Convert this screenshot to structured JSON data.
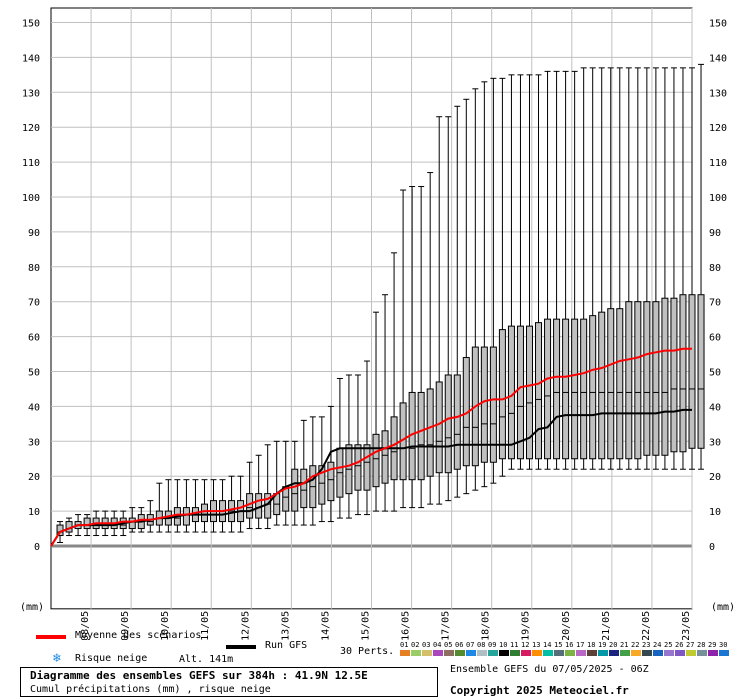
{
  "chart_data": {
    "type": "box",
    "title": "Diagramme des ensembles GEFS sur 384h : 41.9N 12.5E",
    "subtitle": "Cumul précipitations (mm) , risque neige",
    "ylabel": "(mm)",
    "ylim": [
      -18,
      152
    ],
    "yticks": [
      0,
      10,
      20,
      30,
      40,
      50,
      60,
      70,
      80,
      90,
      100,
      110,
      120,
      130,
      140,
      150
    ],
    "x_labels": [
      "08/05",
      "09/05",
      "10/05",
      "11/05",
      "12/05",
      "13/05",
      "14/05",
      "15/05",
      "16/05",
      "17/05",
      "18/05",
      "19/05",
      "20/05",
      "21/05",
      "22/05",
      "23/05"
    ],
    "boxes": [
      {
        "min": 1,
        "q1": 3,
        "med": 4,
        "q3": 6,
        "max": 7
      },
      {
        "min": 3,
        "q1": 4,
        "med": 5,
        "q3": 7,
        "max": 8
      },
      {
        "min": 3,
        "q1": 5,
        "med": 6,
        "q3": 7,
        "max": 9
      },
      {
        "min": 3,
        "q1": 5,
        "med": 6,
        "q3": 8,
        "max": 9
      },
      {
        "min": 3,
        "q1": 5,
        "med": 6,
        "q3": 8,
        "max": 10
      },
      {
        "min": 3,
        "q1": 5,
        "med": 6,
        "q3": 8,
        "max": 10
      },
      {
        "min": 3,
        "q1": 5,
        "med": 6,
        "q3": 8,
        "max": 10
      },
      {
        "min": 3,
        "q1": 5,
        "med": 6,
        "q3": 8,
        "max": 10
      },
      {
        "min": 4,
        "q1": 5,
        "med": 7,
        "q3": 8,
        "max": 11
      },
      {
        "min": 4,
        "q1": 5,
        "med": 7,
        "q3": 9,
        "max": 11
      },
      {
        "min": 4,
        "q1": 6,
        "med": 7,
        "q3": 9,
        "max": 13
      },
      {
        "min": 4,
        "q1": 6,
        "med": 8,
        "q3": 10,
        "max": 18
      },
      {
        "min": 4,
        "q1": 6,
        "med": 8,
        "q3": 10,
        "max": 19
      },
      {
        "min": 4,
        "q1": 6,
        "med": 8,
        "q3": 11,
        "max": 19
      },
      {
        "min": 4,
        "q1": 6,
        "med": 9,
        "q3": 11,
        "max": 19
      },
      {
        "min": 4,
        "q1": 7,
        "med": 9,
        "q3": 11,
        "max": 19
      },
      {
        "min": 4,
        "q1": 7,
        "med": 9,
        "q3": 12,
        "max": 19
      },
      {
        "min": 4,
        "q1": 7,
        "med": 10,
        "q3": 13,
        "max": 19
      },
      {
        "min": 4,
        "q1": 7,
        "med": 10,
        "q3": 13,
        "max": 19
      },
      {
        "min": 4,
        "q1": 7,
        "med": 10,
        "q3": 13,
        "max": 20
      },
      {
        "min": 4,
        "q1": 7,
        "med": 10,
        "q3": 13,
        "max": 20
      },
      {
        "min": 5,
        "q1": 8,
        "med": 11,
        "q3": 15,
        "max": 24
      },
      {
        "min": 5,
        "q1": 8,
        "med": 11,
        "q3": 15,
        "max": 26
      },
      {
        "min": 5,
        "q1": 8,
        "med": 12,
        "q3": 15,
        "max": 29
      },
      {
        "min": 6,
        "q1": 9,
        "med": 12,
        "q3": 15,
        "max": 30
      },
      {
        "min": 6,
        "q1": 10,
        "med": 14,
        "q3": 17,
        "max": 30
      },
      {
        "min": 6,
        "q1": 10,
        "med": 15,
        "q3": 22,
        "max": 30
      },
      {
        "min": 6,
        "q1": 11,
        "med": 16,
        "q3": 22,
        "max": 36
      },
      {
        "min": 6,
        "q1": 11,
        "med": 17,
        "q3": 23,
        "max": 37
      },
      {
        "min": 7,
        "q1": 12,
        "med": 18,
        "q3": 23,
        "max": 37
      },
      {
        "min": 7,
        "q1": 13,
        "med": 19,
        "q3": 24,
        "max": 40
      },
      {
        "min": 8,
        "q1": 14,
        "med": 21,
        "q3": 28,
        "max": 48
      },
      {
        "min": 8,
        "q1": 15,
        "med": 22,
        "q3": 29,
        "max": 49
      },
      {
        "min": 9,
        "q1": 16,
        "med": 23,
        "q3": 29,
        "max": 49
      },
      {
        "min": 9,
        "q1": 16,
        "med": 24,
        "q3": 29,
        "max": 53
      },
      {
        "min": 10,
        "q1": 17,
        "med": 25,
        "q3": 32,
        "max": 67
      },
      {
        "min": 10,
        "q1": 18,
        "med": 26,
        "q3": 33,
        "max": 72
      },
      {
        "min": 10,
        "q1": 19,
        "med": 27,
        "q3": 37,
        "max": 84
      },
      {
        "min": 11,
        "q1": 19,
        "med": 28,
        "q3": 41,
        "max": 102
      },
      {
        "min": 11,
        "q1": 19,
        "med": 28,
        "q3": 44,
        "max": 103
      },
      {
        "min": 11,
        "q1": 19,
        "med": 29,
        "q3": 44,
        "max": 103
      },
      {
        "min": 12,
        "q1": 20,
        "med": 29,
        "q3": 45,
        "max": 107
      },
      {
        "min": 12,
        "q1": 21,
        "med": 30,
        "q3": 47,
        "max": 123
      },
      {
        "min": 13,
        "q1": 21,
        "med": 31,
        "q3": 49,
        "max": 123
      },
      {
        "min": 14,
        "q1": 22,
        "med": 32,
        "q3": 49,
        "max": 126
      },
      {
        "min": 15,
        "q1": 23,
        "med": 34,
        "q3": 54,
        "max": 128
      },
      {
        "min": 16,
        "q1": 23,
        "med": 34,
        "q3": 57,
        "max": 131
      },
      {
        "min": 17,
        "q1": 24,
        "med": 35,
        "q3": 57,
        "max": 133
      },
      {
        "min": 18,
        "q1": 24,
        "med": 35,
        "q3": 57,
        "max": 134
      },
      {
        "min": 20,
        "q1": 25,
        "med": 37,
        "q3": 62,
        "max": 134
      },
      {
        "min": 22,
        "q1": 25,
        "med": 38,
        "q3": 63,
        "max": 135
      },
      {
        "min": 22,
        "q1": 25,
        "med": 40,
        "q3": 63,
        "max": 135
      },
      {
        "min": 22,
        "q1": 25,
        "med": 41,
        "q3": 63,
        "max": 135
      },
      {
        "min": 22,
        "q1": 25,
        "med": 42,
        "q3": 64,
        "max": 135
      },
      {
        "min": 22,
        "q1": 25,
        "med": 43,
        "q3": 65,
        "max": 136
      },
      {
        "min": 22,
        "q1": 25,
        "med": 44,
        "q3": 65,
        "max": 136
      },
      {
        "min": 22,
        "q1": 25,
        "med": 44,
        "q3": 65,
        "max": 136
      },
      {
        "min": 22,
        "q1": 25,
        "med": 44,
        "q3": 65,
        "max": 136
      },
      {
        "min": 22,
        "q1": 25,
        "med": 44,
        "q3": 65,
        "max": 137
      },
      {
        "min": 22,
        "q1": 25,
        "med": 44,
        "q3": 66,
        "max": 137
      },
      {
        "min": 22,
        "q1": 25,
        "med": 44,
        "q3": 67,
        "max": 137
      },
      {
        "min": 22,
        "q1": 25,
        "med": 44,
        "q3": 68,
        "max": 137
      },
      {
        "min": 22,
        "q1": 25,
        "med": 44,
        "q3": 68,
        "max": 137
      },
      {
        "min": 22,
        "q1": 25,
        "med": 44,
        "q3": 70,
        "max": 137
      },
      {
        "min": 22,
        "q1": 25,
        "med": 44,
        "q3": 70,
        "max": 137
      },
      {
        "min": 22,
        "q1": 26,
        "med": 44,
        "q3": 70,
        "max": 137
      },
      {
        "min": 22,
        "q1": 26,
        "med": 44,
        "q3": 70,
        "max": 137
      },
      {
        "min": 22,
        "q1": 26,
        "med": 44,
        "q3": 71,
        "max": 137
      },
      {
        "min": 22,
        "q1": 27,
        "med": 45,
        "q3": 71,
        "max": 137
      },
      {
        "min": 22,
        "q1": 27,
        "med": 45,
        "q3": 72,
        "max": 137
      },
      {
        "min": 22,
        "q1": 28,
        "med": 45,
        "q3": 72,
        "max": 137
      },
      {
        "min": 22,
        "q1": 28,
        "med": 45,
        "q3": 72,
        "max": 138
      }
    ],
    "mean": [
      0,
      4,
      5,
      6,
      6,
      6.5,
      6.5,
      6.5,
      7,
      7,
      7.5,
      7.5,
      8,
      8.5,
      9,
      9,
      9.5,
      10,
      10,
      10,
      10.5,
      11,
      12,
      13,
      13.5,
      15,
      16.5,
      17,
      18,
      20,
      21,
      22,
      22.5,
      23,
      24,
      25.5,
      27,
      28,
      29,
      30.5,
      32,
      33,
      34,
      35,
      36.5,
      37,
      38,
      40,
      41.5,
      42,
      42,
      43,
      45.5,
      46,
      46.5,
      48,
      48.5,
      48.5,
      49,
      49.5,
      50.5,
      51,
      52,
      53,
      53.5,
      54,
      55,
      55.5,
      56,
      56,
      56.5,
      56.5
    ],
    "gfs": [
      0,
      4,
      5,
      6,
      6,
      6,
      6,
      6,
      6.5,
      7,
      7,
      7.5,
      8,
      8,
      8.5,
      9,
      9,
      9,
      9,
      9,
      9.5,
      10,
      10,
      11,
      12,
      15,
      17,
      18,
      18,
      19,
      22,
      27,
      28,
      28,
      28,
      28,
      28,
      28,
      28,
      28,
      28.5,
      28.5,
      28.5,
      28.5,
      28.5,
      29,
      29,
      29,
      29,
      29,
      29,
      29,
      30,
      31,
      33.5,
      34,
      37,
      37.5,
      37.5,
      37.5,
      37.5,
      38,
      38,
      38,
      38,
      38,
      38,
      38,
      38.5,
      38.5,
      39,
      39
    ],
    "legend": {
      "mean_label": "Moyenne des scénarios",
      "gfs_label": "Run GFS",
      "snow_label": "Risque neige",
      "alt_label": "Alt. 141m",
      "perts_label": "30 Perts.",
      "mean_color": "#ff0000",
      "gfs_color": "#000000",
      "snow_icon": "snowflake-icon"
    },
    "perturbations": [
      "01",
      "02",
      "03",
      "04",
      "05",
      "06",
      "07",
      "08",
      "09",
      "10",
      "11",
      "12",
      "13",
      "14",
      "15",
      "16",
      "17",
      "18",
      "19",
      "20",
      "21",
      "22",
      "23",
      "24",
      "25",
      "26",
      "27",
      "28",
      "29",
      "30"
    ],
    "pert_colors": [
      "#e67e22",
      "#9ccc65",
      "#d4c06a",
      "#ab47bc",
      "#8d6e63",
      "#558b2f",
      "#1e88e5",
      "#b0bec5",
      "#26a69a",
      "#000000",
      "#2e7d32",
      "#d81b60",
      "#ff8f00",
      "#00bfa5",
      "#546e7a",
      "#7cb342",
      "#ba68c8",
      "#5d4037",
      "#0097a7",
      "#1a237e",
      "#43a047",
      "#f9a825",
      "#37474f",
      "#1565c0",
      "#9575cd",
      "#7e57c2",
      "#c0ca33",
      "#78909c",
      "#8e24aa",
      "#1976d2"
    ]
  },
  "footer": {
    "title": "Diagramme des ensembles GEFS sur 384h : 41.9N 12.5E",
    "subtitle": "Cumul précipitations (mm) , risque neige",
    "ensemble_info": "Ensemble GEFS du 07/05/2025 - 06Z",
    "copyright": "Copyright 2025 Meteociel.fr"
  }
}
